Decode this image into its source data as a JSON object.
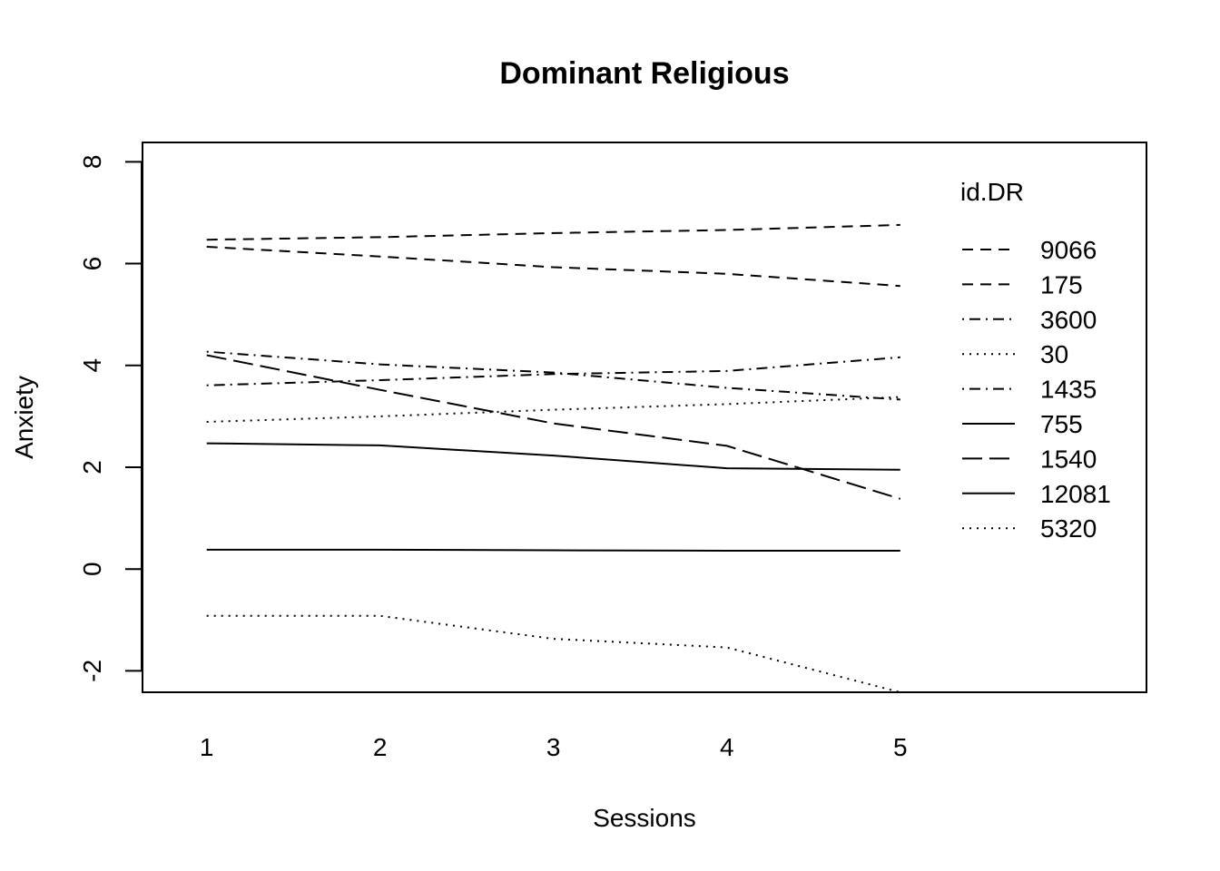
{
  "chart_data": {
    "type": "line",
    "title": "Dominant Religious",
    "xlabel": "Sessions",
    "ylabel": "Anxiety",
    "x": [
      1,
      2,
      3,
      4,
      5
    ],
    "x_ticks": [
      1,
      2,
      3,
      4,
      5
    ],
    "y_ticks": [
      -2,
      0,
      2,
      4,
      6,
      8
    ],
    "xlim": [
      0.63,
      6.42
    ],
    "ylim": [
      -2.42,
      8.38
    ],
    "grid": false,
    "legend": {
      "title": "id.DR",
      "placement": "top-right"
    },
    "series": [
      {
        "name": "9066",
        "values": [
          6.47,
          6.52,
          6.6,
          6.66,
          6.76
        ],
        "dash": "dashed"
      },
      {
        "name": "175",
        "values": [
          6.33,
          6.14,
          5.93,
          5.8,
          5.56
        ],
        "dash": "dashed"
      },
      {
        "name": "3600",
        "values": [
          3.61,
          3.71,
          3.83,
          3.89,
          4.16
        ],
        "dash": "dotdash"
      },
      {
        "name": "30",
        "values": [
          2.89,
          3.0,
          3.13,
          3.24,
          3.38
        ],
        "dash": "dotted"
      },
      {
        "name": "1435",
        "values": [
          4.27,
          4.02,
          3.86,
          3.56,
          3.33
        ],
        "dash": "dotdash"
      },
      {
        "name": "755",
        "values": [
          2.47,
          2.43,
          2.23,
          1.98,
          1.95
        ],
        "dash": "solid"
      },
      {
        "name": "1540",
        "values": [
          4.2,
          3.52,
          2.86,
          2.42,
          1.38
        ],
        "dash": "longdash"
      },
      {
        "name": "12081",
        "values": [
          0.38,
          0.38,
          0.37,
          0.36,
          0.36
        ],
        "dash": "solid"
      },
      {
        "name": "5320",
        "values": [
          -0.92,
          -0.92,
          -1.37,
          -1.54,
          -2.42
        ],
        "dash": "dotted"
      }
    ]
  }
}
